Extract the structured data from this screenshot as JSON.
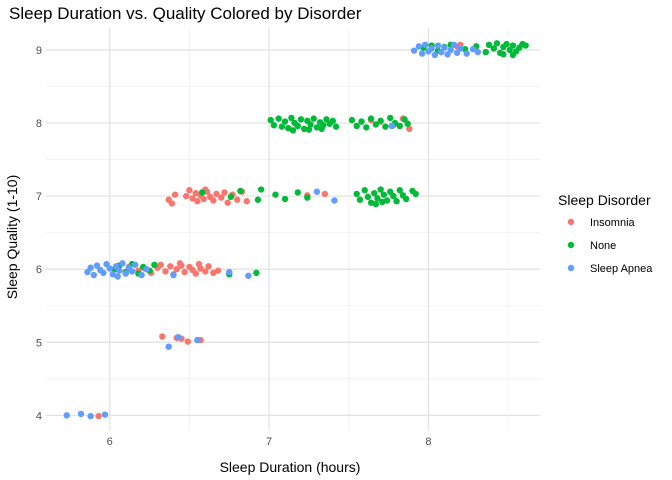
{
  "chart_data": {
    "type": "scatter",
    "title": "Sleep Duration vs. Quality Colored by Disorder",
    "xlabel": "Sleep Duration (hours)",
    "ylabel": "Sleep Quality (1-10)",
    "xlim": [
      5.6,
      8.7
    ],
    "ylim": [
      3.8,
      9.3
    ],
    "x_ticks": [
      6,
      7,
      8
    ],
    "y_ticks": [
      4,
      5,
      6,
      7,
      8,
      9
    ],
    "grid": true,
    "legend_position": "right",
    "legend_title": "Sleep Disorder",
    "series": [
      {
        "name": "Insomnia",
        "color": "#F8766D",
        "points": [
          [
            5.93,
            3.99
          ],
          [
            6.33,
            5.08
          ],
          [
            6.42,
            5.06
          ],
          [
            6.45,
            5.05
          ],
          [
            6.49,
            5.01
          ],
          [
            6.57,
            5.03
          ],
          [
            6.12,
            6.03
          ],
          [
            6.18,
            5.98
          ],
          [
            6.22,
            6.01
          ],
          [
            6.26,
            5.95
          ],
          [
            6.3,
            6.02
          ],
          [
            6.32,
            6.06
          ],
          [
            6.35,
            5.97
          ],
          [
            6.38,
            6.04
          ],
          [
            6.4,
            5.93
          ],
          [
            6.42,
            6.0
          ],
          [
            6.45,
            6.05
          ],
          [
            6.47,
            5.96
          ],
          [
            6.5,
            6.03
          ],
          [
            6.52,
            5.99
          ],
          [
            6.54,
            5.94
          ],
          [
            6.57,
            6.01
          ],
          [
            6.6,
            5.97
          ],
          [
            6.62,
            6.04
          ],
          [
            6.65,
            5.95
          ],
          [
            6.68,
            5.98
          ],
          [
            6.56,
            6.07
          ],
          [
            6.44,
            6.08
          ],
          [
            6.37,
            6.95
          ],
          [
            6.39,
            6.9
          ],
          [
            6.41,
            7.02
          ],
          [
            6.5,
            7.08
          ],
          [
            6.52,
            6.97
          ],
          [
            6.54,
            7.04
          ],
          [
            6.55,
            6.93
          ],
          [
            6.57,
            7.01
          ],
          [
            6.59,
            6.96
          ],
          [
            6.61,
            7.06
          ],
          [
            6.63,
            6.99
          ],
          [
            6.65,
            6.94
          ],
          [
            6.67,
            7.03
          ],
          [
            6.7,
            6.98
          ],
          [
            6.72,
            7.05
          ],
          [
            6.74,
            6.91
          ],
          [
            6.77,
            7.02
          ],
          [
            6.8,
            6.95
          ],
          [
            6.83,
            7.06
          ],
          [
            6.86,
            6.93
          ],
          [
            6.6,
            7.09
          ],
          [
            6.48,
            7.0
          ],
          [
            7.24,
            7.01
          ],
          [
            7.35,
            7.03
          ],
          [
            7.64,
            8.04
          ],
          [
            7.7,
            8.02
          ],
          [
            7.78,
            7.97
          ],
          [
            7.84,
            8.06
          ],
          [
            7.88,
            7.92
          ],
          [
            8.18,
            9.05
          ],
          [
            8.2,
            9.07
          ]
        ]
      },
      {
        "name": "None",
        "color": "#00BA38",
        "points": [
          [
            6.03,
            6.0
          ],
          [
            6.06,
            6.05
          ],
          [
            6.1,
            5.96
          ],
          [
            6.14,
            6.07
          ],
          [
            6.18,
            5.94
          ],
          [
            6.21,
            6.03
          ],
          [
            6.25,
            5.98
          ],
          [
            6.28,
            6.06
          ],
          [
            6.75,
            5.93
          ],
          [
            6.92,
            5.95
          ],
          [
            6.58,
            7.05
          ],
          [
            6.76,
            6.99
          ],
          [
            6.82,
            7.07
          ],
          [
            6.93,
            6.95
          ],
          [
            6.95,
            7.09
          ],
          [
            7.04,
            7.02
          ],
          [
            7.1,
            6.96
          ],
          [
            7.18,
            7.05
          ],
          [
            7.24,
            6.98
          ],
          [
            7.55,
            7.03
          ],
          [
            7.57,
            6.95
          ],
          [
            7.6,
            7.08
          ],
          [
            7.62,
            6.99
          ],
          [
            7.64,
            6.91
          ],
          [
            7.66,
            7.04
          ],
          [
            7.68,
            6.97
          ],
          [
            7.7,
            7.09
          ],
          [
            7.72,
            7.02
          ],
          [
            7.74,
            6.94
          ],
          [
            7.76,
            7.06
          ],
          [
            7.78,
            7.0
          ],
          [
            7.8,
            6.93
          ],
          [
            7.82,
            7.08
          ],
          [
            7.84,
            7.01
          ],
          [
            7.86,
            6.96
          ],
          [
            7.9,
            7.07
          ],
          [
            7.92,
            7.03
          ],
          [
            7.67,
            6.89
          ],
          [
            7.71,
            6.92
          ],
          [
            7.01,
            8.04
          ],
          [
            7.03,
            7.97
          ],
          [
            7.06,
            8.06
          ],
          [
            7.08,
            7.95
          ],
          [
            7.1,
            8.02
          ],
          [
            7.12,
            7.93
          ],
          [
            7.14,
            8.07
          ],
          [
            7.16,
            8.0
          ],
          [
            7.18,
            7.96
          ],
          [
            7.2,
            8.05
          ],
          [
            7.22,
            7.92
          ],
          [
            7.24,
            8.03
          ],
          [
            7.26,
            7.98
          ],
          [
            7.28,
            8.06
          ],
          [
            7.3,
            7.94
          ],
          [
            7.32,
            8.01
          ],
          [
            7.34,
            7.97
          ],
          [
            7.36,
            8.05
          ],
          [
            7.38,
            7.99
          ],
          [
            7.4,
            8.03
          ],
          [
            7.42,
            7.95
          ],
          [
            7.15,
            7.9
          ],
          [
            7.25,
            7.91
          ],
          [
            7.33,
            7.92
          ],
          [
            7.52,
            8.04
          ],
          [
            7.55,
            7.96
          ],
          [
            7.58,
            8.02
          ],
          [
            7.61,
            7.94
          ],
          [
            7.64,
            8.06
          ],
          [
            7.67,
            7.98
          ],
          [
            7.7,
            8.03
          ],
          [
            7.73,
            7.95
          ],
          [
            7.76,
            8.07
          ],
          [
            7.79,
            8.0
          ],
          [
            7.82,
            7.96
          ],
          [
            7.85,
            8.05
          ],
          [
            7.87,
            7.99
          ],
          [
            7.97,
            9.03
          ],
          [
            8.02,
            9.06
          ],
          [
            8.06,
            8.99
          ],
          [
            8.1,
            9.04
          ],
          [
            8.14,
            9.07
          ],
          [
            8.23,
            9.01
          ],
          [
            8.3,
            9.05
          ],
          [
            8.36,
            8.97
          ],
          [
            8.38,
            9.07
          ],
          [
            8.41,
            9.02
          ],
          [
            8.43,
            9.09
          ],
          [
            8.45,
            8.96
          ],
          [
            8.47,
            9.04
          ],
          [
            8.49,
            9.08
          ],
          [
            8.51,
            9.0
          ],
          [
            8.53,
            9.06
          ],
          [
            8.55,
            8.98
          ],
          [
            8.57,
            9.03
          ],
          [
            8.59,
            9.08
          ],
          [
            8.61,
            9.06
          ],
          [
            8.47,
            8.94
          ],
          [
            8.53,
            8.93
          ]
        ]
      },
      {
        "name": "Sleep Apnea",
        "color": "#619CFF",
        "points": [
          [
            5.73,
            4.0
          ],
          [
            5.82,
            4.02
          ],
          [
            5.88,
            3.99
          ],
          [
            5.97,
            4.01
          ],
          [
            6.37,
            4.94
          ],
          [
            6.43,
            5.07
          ],
          [
            6.55,
            5.03
          ],
          [
            5.86,
            5.96
          ],
          [
            5.88,
            6.02
          ],
          [
            5.9,
            5.92
          ],
          [
            5.92,
            6.05
          ],
          [
            5.94,
            5.99
          ],
          [
            5.96,
            5.95
          ],
          [
            5.98,
            6.07
          ],
          [
            6.0,
            6.01
          ],
          [
            6.02,
            5.93
          ],
          [
            6.04,
            6.04
          ],
          [
            6.06,
            5.98
          ],
          [
            6.08,
            6.08
          ],
          [
            6.1,
            5.94
          ],
          [
            6.12,
            6.02
          ],
          [
            6.14,
            5.97
          ],
          [
            6.05,
            5.9
          ],
          [
            6.16,
            6.06
          ],
          [
            6.2,
            5.92
          ],
          [
            6.23,
            6.0
          ],
          [
            6.4,
            5.92
          ],
          [
            6.75,
            5.96
          ],
          [
            6.87,
            5.91
          ],
          [
            7.3,
            7.06
          ],
          [
            7.41,
            6.94
          ],
          [
            7.77,
            7.96
          ],
          [
            7.91,
            8.99
          ],
          [
            7.94,
            9.05
          ],
          [
            7.96,
            8.95
          ],
          [
            7.98,
            9.07
          ],
          [
            8.0,
            8.98
          ],
          [
            8.02,
            9.02
          ],
          [
            8.04,
            8.93
          ],
          [
            8.06,
            9.06
          ],
          [
            8.08,
            8.97
          ],
          [
            8.1,
            9.03
          ],
          [
            8.12,
            8.94
          ],
          [
            8.14,
            9.0
          ],
          [
            8.16,
            9.07
          ],
          [
            8.18,
            8.96
          ],
          [
            8.2,
            9.02
          ],
          [
            8.24,
            8.95
          ],
          [
            8.28,
            9.01
          ],
          [
            8.31,
            8.97
          ]
        ]
      }
    ]
  }
}
